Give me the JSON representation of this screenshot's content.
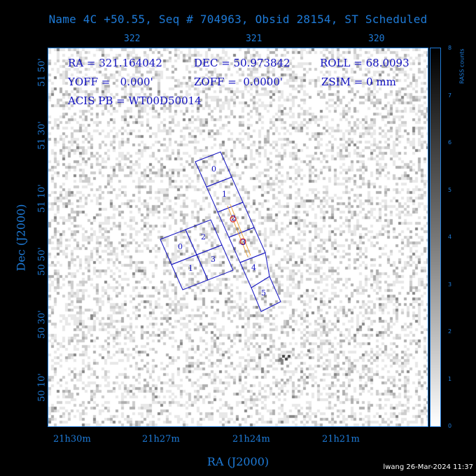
{
  "title": "Name 4C +50.55, Seq # 704963, Obsid 28154, ST Scheduled",
  "ra_top_ticks": [
    "322",
    "321",
    "320"
  ],
  "ra_bottom_ticks": [
    "21h30m",
    "21h27m",
    "21h24m",
    "21h21m"
  ],
  "dec_ticks": [
    "51 50'",
    "51 30'",
    "51 10'",
    "50 50'",
    "50 30'",
    "50 10'"
  ],
  "xlabel": "RA (J2000)",
  "ylabel": "Dec (J2000)",
  "info": {
    "ra": "RA = 321.164042",
    "dec": "DEC = 50.973842",
    "roll": "ROLL = 68.0093",
    "yoff": "YOFF =   0.000'",
    "zoff": "ZOFF =  0.0000'",
    "zsim": "ZSIM = 0 mm",
    "acis_pb": "ACIS PB = WT00D50014"
  },
  "ccd_labels": {
    "s": [
      "0",
      "1",
      "2",
      "3",
      "4",
      "5"
    ],
    "i": [
      "0",
      "1",
      "2",
      "3"
    ]
  },
  "colorbar": {
    "label": "RASS counts",
    "ticks": [
      "0",
      "1",
      "2",
      "3",
      "4",
      "5",
      "6",
      "7",
      "8"
    ]
  },
  "footer": "lwang 26-Mar-2024 11:37",
  "colors": {
    "axis": "#1e7bd8",
    "info_text": "#1010c0",
    "ccd_outline": "#1010c0",
    "grating_arm": "#e8a23a",
    "source_marker": "#d0202a"
  }
}
